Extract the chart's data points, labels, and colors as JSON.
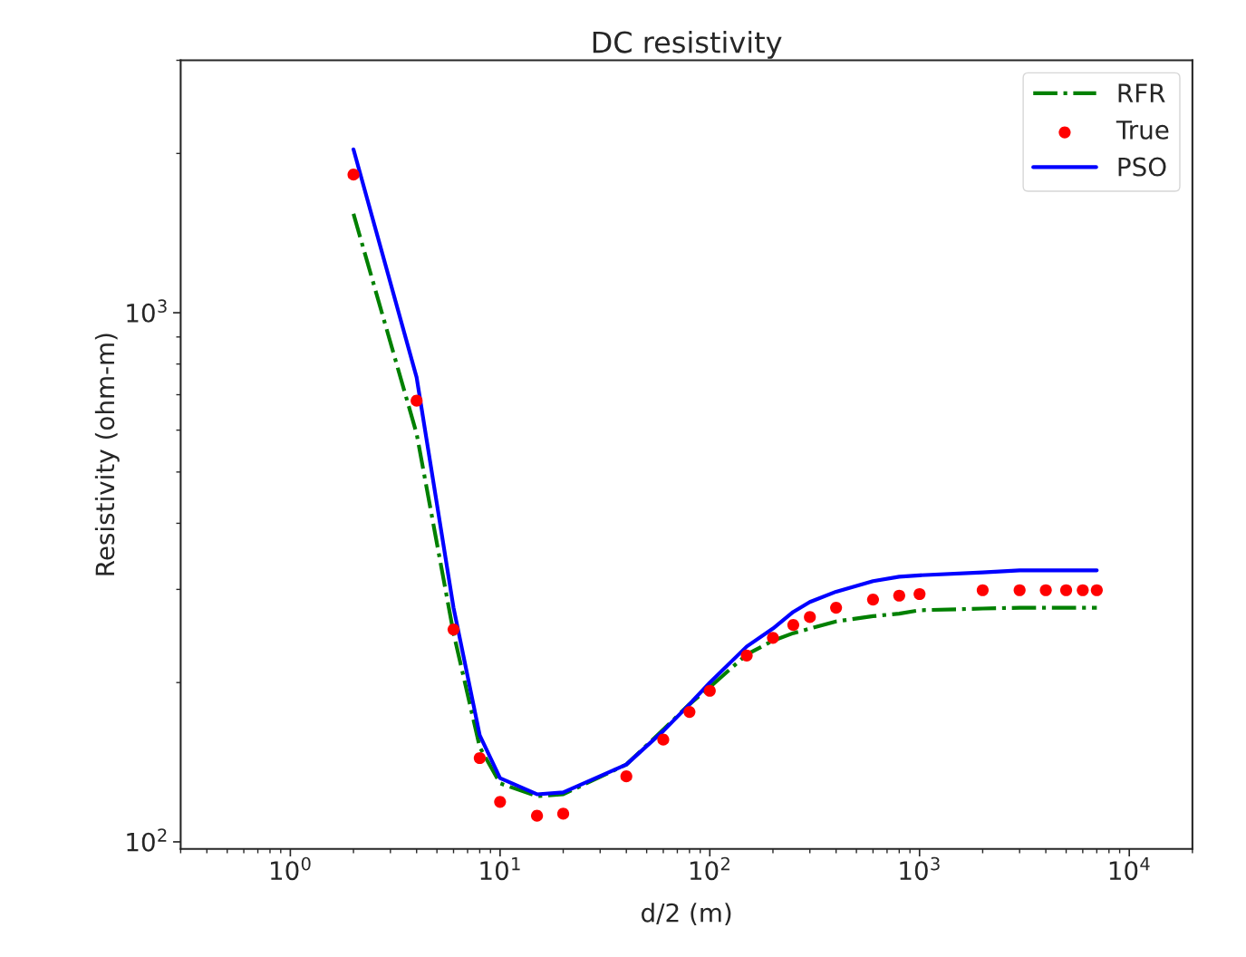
{
  "chart_data": {
    "type": "line",
    "title": "DC resistivity",
    "xlabel": "d/2 (m)",
    "ylabel": "Resistivity (ohm-m)",
    "x": [
      2,
      4,
      6,
      8,
      10,
      15,
      20,
      40,
      60,
      80,
      100,
      150,
      200,
      250,
      300,
      400,
      600,
      800,
      1000,
      2000,
      3000,
      4000,
      5000,
      6000,
      7000
    ],
    "series": [
      {
        "name": "RFR",
        "color": "#008000",
        "line_style": "dashdot",
        "marker": "none",
        "values": [
          1538,
          591,
          248,
          151,
          129,
          122,
          123,
          140,
          163,
          182,
          196,
          226,
          240,
          248,
          253,
          261,
          267,
          270,
          274,
          276,
          277,
          277,
          277,
          277,
          277
        ]
      },
      {
        "name": "True",
        "type": "scatter",
        "color": "#ff0000",
        "marker": "circle",
        "values": [
          1824,
          682,
          252,
          144,
          119,
          112,
          113,
          133,
          156,
          176,
          193,
          225,
          243,
          257,
          266,
          277,
          287,
          292,
          294,
          299,
          299,
          299,
          299,
          299,
          299
        ]
      },
      {
        "name": "PSO",
        "color": "#0000ff",
        "line_style": "solid",
        "marker": "none",
        "values": [
          2036,
          755,
          277,
          159,
          132,
          123,
          124,
          140,
          162,
          182,
          200,
          234,
          253,
          272,
          284,
          297,
          311,
          317,
          319,
          323,
          326,
          326,
          326,
          326,
          326
        ]
      }
    ],
    "log": "xy",
    "xlim": [
      0.3,
      20000
    ],
    "ylim": [
      97,
      3000
    ],
    "xticks": [
      {
        "value": 1,
        "label": "10$^{0}$"
      },
      {
        "value": 10,
        "label": "10$^{1}$"
      },
      {
        "value": 100,
        "label": "10$^{2}$"
      },
      {
        "value": 1000,
        "label": "10$^{3}$"
      },
      {
        "value": 10000,
        "label": "10$^{4}$"
      }
    ],
    "yticks": [
      {
        "value": 100,
        "label": "10$^{2}$"
      },
      {
        "value": 1000,
        "label": "10$^{3}$"
      }
    ],
    "grid": false,
    "legend": "top right"
  }
}
